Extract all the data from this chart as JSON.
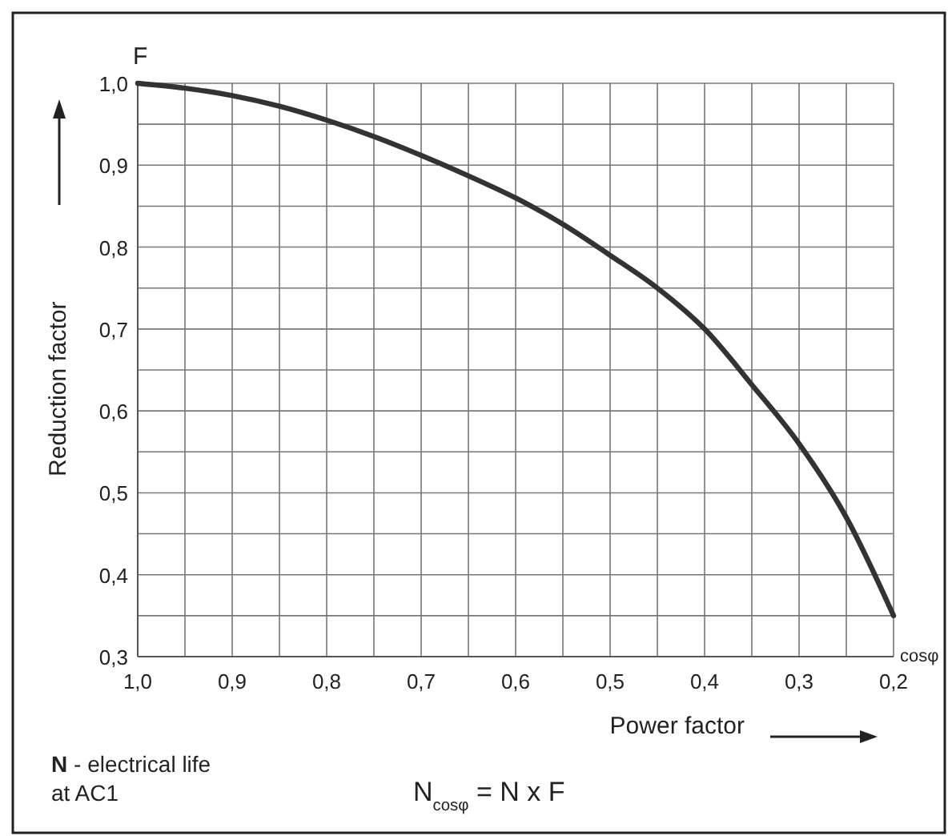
{
  "chart_data": {
    "type": "line",
    "xlabel": "Power factor",
    "ylabel": "Reduction factor",
    "x": [
      1.0,
      0.95,
      0.9,
      0.85,
      0.8,
      0.75,
      0.7,
      0.65,
      0.6,
      0.55,
      0.5,
      0.45,
      0.4,
      0.35,
      0.3,
      0.25,
      0.2
    ],
    "series": [
      {
        "color": "#333333",
        "values": [
          1.0,
          0.994,
          0.985,
          0.972,
          0.955,
          0.935,
          0.912,
          0.887,
          0.86,
          0.828,
          0.79,
          0.75,
          0.7,
          0.632,
          0.56,
          0.47,
          0.35
        ]
      }
    ],
    "xlim": [
      1.0,
      0.2
    ],
    "ylim": [
      0.3,
      1.0
    ],
    "xticks": [
      {
        "value": 1.0,
        "label": "1,0"
      },
      {
        "value": 0.95,
        "label": null
      },
      {
        "value": 0.9,
        "label": "0,9"
      },
      {
        "value": 0.85,
        "label": null
      },
      {
        "value": 0.8,
        "label": "0,8"
      },
      {
        "value": 0.75,
        "label": null
      },
      {
        "value": 0.7,
        "label": "0,7"
      },
      {
        "value": 0.65,
        "label": null
      },
      {
        "value": 0.6,
        "label": "0,6"
      },
      {
        "value": 0.55,
        "label": null
      },
      {
        "value": 0.5,
        "label": "0,5"
      },
      {
        "value": 0.45,
        "label": null
      },
      {
        "value": 0.4,
        "label": "0,4"
      },
      {
        "value": 0.35,
        "label": null
      },
      {
        "value": 0.3,
        "label": "0,3"
      },
      {
        "value": 0.25,
        "label": null
      },
      {
        "value": 0.2,
        "label": "0,2"
      }
    ],
    "yticks": [
      {
        "value": 0.3,
        "label": "0,3"
      },
      {
        "value": 0.35,
        "label": null
      },
      {
        "value": 0.4,
        "label": "0,4"
      },
      {
        "value": 0.45,
        "label": null
      },
      {
        "value": 0.5,
        "label": "0,5"
      },
      {
        "value": 0.55,
        "label": null
      },
      {
        "value": 0.6,
        "label": "0,6"
      },
      {
        "value": 0.65,
        "label": null
      },
      {
        "value": 0.7,
        "label": "0,7"
      },
      {
        "value": 0.75,
        "label": null
      },
      {
        "value": 0.8,
        "label": "0,8"
      },
      {
        "value": 0.85,
        "label": null
      },
      {
        "value": 0.9,
        "label": "0,9"
      },
      {
        "value": 0.95,
        "label": null
      },
      {
        "value": 1.0,
        "label": "1,0"
      }
    ],
    "grid": true,
    "marker": "none",
    "line_style": "solid",
    "annotations": [
      "F",
      "cosφ",
      "N - electrical life at AC1",
      "N$_{cosφ}$ = N x F"
    ]
  }
}
